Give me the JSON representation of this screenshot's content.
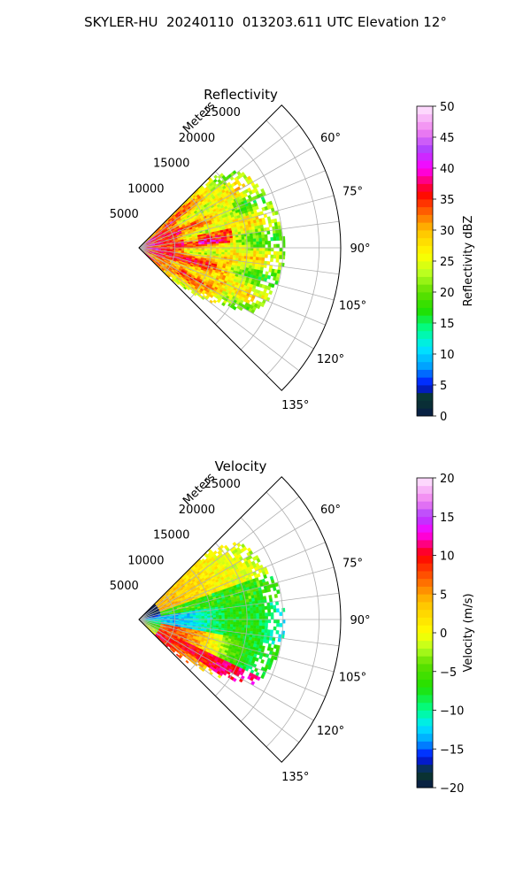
{
  "figure": {
    "title": "SKYLER-HU  20240110  013203.611 UTC Elevation 12°"
  },
  "chart_data": [
    {
      "type": "heatmap",
      "subtype": "polar-ppi-sector",
      "title": "Reflectivity",
      "radial_axis_label": "Meters",
      "radial_ticks": [
        5000,
        10000,
        15000,
        20000,
        25000
      ],
      "radial_tick_labels": [
        "5000",
        "10000",
        "15000",
        "20000",
        "25000"
      ],
      "radial_range": [
        0,
        28000
      ],
      "azimuth_range_deg": [
        45,
        135
      ],
      "azimuth_ticks": [
        60,
        75,
        90,
        105,
        120,
        135
      ],
      "azimuth_tick_labels": [
        "60°",
        "75°",
        "90°",
        "105°",
        "120°",
        "135°"
      ],
      "data_azimuth_range_deg": [
        45,
        134
      ],
      "data_max_range_m": 21000,
      "grid": true,
      "colorbar": {
        "label": "Reflectivity dBZ",
        "range": [
          0,
          50
        ],
        "ticks": [
          0,
          5,
          10,
          15,
          20,
          25,
          30,
          35,
          40,
          45,
          50
        ],
        "tick_labels": [
          "0",
          "5",
          "10",
          "15",
          "20",
          "25",
          "30",
          "35",
          "40",
          "45",
          "50"
        ],
        "colormap_stops": [
          {
            "v": 0,
            "c": "#081a4a"
          },
          {
            "v": 3,
            "c": "#0a3a2a"
          },
          {
            "v": 5,
            "c": "#0010ff"
          },
          {
            "v": 8,
            "c": "#00a0ff"
          },
          {
            "v": 11,
            "c": "#00e8ff"
          },
          {
            "v": 14,
            "c": "#00ff90"
          },
          {
            "v": 17,
            "c": "#20e000"
          },
          {
            "v": 20,
            "c": "#60e000"
          },
          {
            "v": 23,
            "c": "#b8ff20"
          },
          {
            "v": 26,
            "c": "#ffff00"
          },
          {
            "v": 30,
            "c": "#ffc000"
          },
          {
            "v": 33,
            "c": "#ff6000"
          },
          {
            "v": 36,
            "c": "#ff0000"
          },
          {
            "v": 40,
            "c": "#ff00ff"
          },
          {
            "v": 43,
            "c": "#b040ff"
          },
          {
            "v": 46,
            "c": "#f080f0"
          },
          {
            "v": 50,
            "c": "#ffe8ff"
          }
        ]
      }
    },
    {
      "type": "heatmap",
      "subtype": "polar-ppi-sector",
      "title": "Velocity",
      "radial_axis_label": "Meters",
      "radial_ticks": [
        5000,
        10000,
        15000,
        20000,
        25000
      ],
      "radial_tick_labels": [
        "5000",
        "10000",
        "15000",
        "20000",
        "25000"
      ],
      "radial_range": [
        0,
        28000
      ],
      "azimuth_range_deg": [
        45,
        135
      ],
      "azimuth_ticks": [
        60,
        75,
        90,
        105,
        120,
        135
      ],
      "azimuth_tick_labels": [
        "60°",
        "75°",
        "90°",
        "105°",
        "120°",
        "135°"
      ],
      "data_azimuth_range_deg": [
        45,
        134
      ],
      "data_max_range_m": 21000,
      "grid": true,
      "colorbar": {
        "label": "Velocity (m/s)",
        "range": [
          -20,
          20
        ],
        "ticks": [
          -20,
          -15,
          -10,
          -5,
          0,
          5,
          10,
          15,
          20
        ],
        "tick_labels": [
          "−20",
          "−15",
          "−10",
          "−5",
          "0",
          "5",
          "10",
          "15",
          "20"
        ],
        "colormap_stops": [
          {
            "v": -20,
            "c": "#081a4a"
          },
          {
            "v": -18,
            "c": "#0a3a2a"
          },
          {
            "v": -16,
            "c": "#0010ff"
          },
          {
            "v": -14,
            "c": "#00a0ff"
          },
          {
            "v": -12,
            "c": "#00e8ff"
          },
          {
            "v": -10,
            "c": "#00ff90"
          },
          {
            "v": -7,
            "c": "#20e000"
          },
          {
            "v": -4,
            "c": "#60e000"
          },
          {
            "v": -2,
            "c": "#b8ff20"
          },
          {
            "v": 0,
            "c": "#ffff00"
          },
          {
            "v": 4,
            "c": "#ffc000"
          },
          {
            "v": 7,
            "c": "#ff6000"
          },
          {
            "v": 10,
            "c": "#ff0000"
          },
          {
            "v": 13,
            "c": "#ff00ff"
          },
          {
            "v": 15,
            "c": "#b040ff"
          },
          {
            "v": 17,
            "c": "#f080f0"
          },
          {
            "v": 20,
            "c": "#ffe8ff"
          }
        ]
      }
    }
  ]
}
